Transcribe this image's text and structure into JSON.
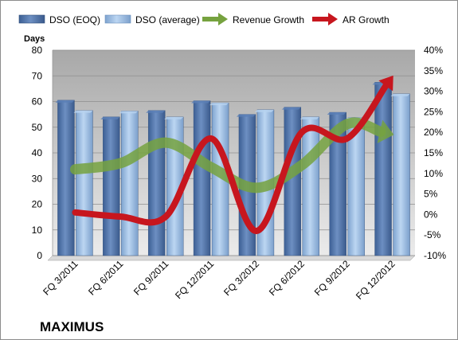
{
  "chart_data": {
    "type": "bar",
    "title": "",
    "brand": "MAXIMUS",
    "categories": [
      "FQ 3/2011",
      "FQ 6/2011",
      "FQ 9/2011",
      "FQ 12/2011",
      "FQ 3/2012",
      "FQ 6/2012",
      "FQ 9/2012",
      "FQ 12/2012"
    ],
    "ylabel": "Days",
    "ylim": [
      0,
      80
    ],
    "yticks": [
      "0",
      "10",
      "20",
      "30",
      "40",
      "50",
      "60",
      "70",
      "80"
    ],
    "y2lim": [
      -10,
      40
    ],
    "y2ticks": [
      "-10%",
      "-5%",
      "0%",
      "5%",
      "10%",
      "15%",
      "20%",
      "25%",
      "30%",
      "35%",
      "40%"
    ],
    "grid": true,
    "legend_position": "top",
    "series": [
      {
        "name": "DSO (EOQ)",
        "kind": "bar",
        "axis": "left",
        "color": "#4a6fa5",
        "values": [
          60.5,
          54,
          56.5,
          60.3,
          55,
          57.8,
          55.8,
          67.5
        ]
      },
      {
        "name": "DSO (average)",
        "kind": "bar",
        "axis": "left",
        "color": "#9dbfe6",
        "values": [
          56.5,
          56.3,
          54,
          59.5,
          56.8,
          54,
          53.8,
          63
        ]
      },
      {
        "name": "Revenue Growth",
        "kind": "arrow-line",
        "axis": "right",
        "color": "#76a23f",
        "values": [
          11,
          12.5,
          17.5,
          11.5,
          6.5,
          12,
          22,
          19.5
        ]
      },
      {
        "name": "AR Growth",
        "kind": "arrow-line",
        "axis": "right",
        "color": "#c7161e",
        "values": [
          0.5,
          -0.5,
          -0.5,
          18.5,
          -4,
          20,
          18.5,
          33.5
        ]
      }
    ]
  }
}
